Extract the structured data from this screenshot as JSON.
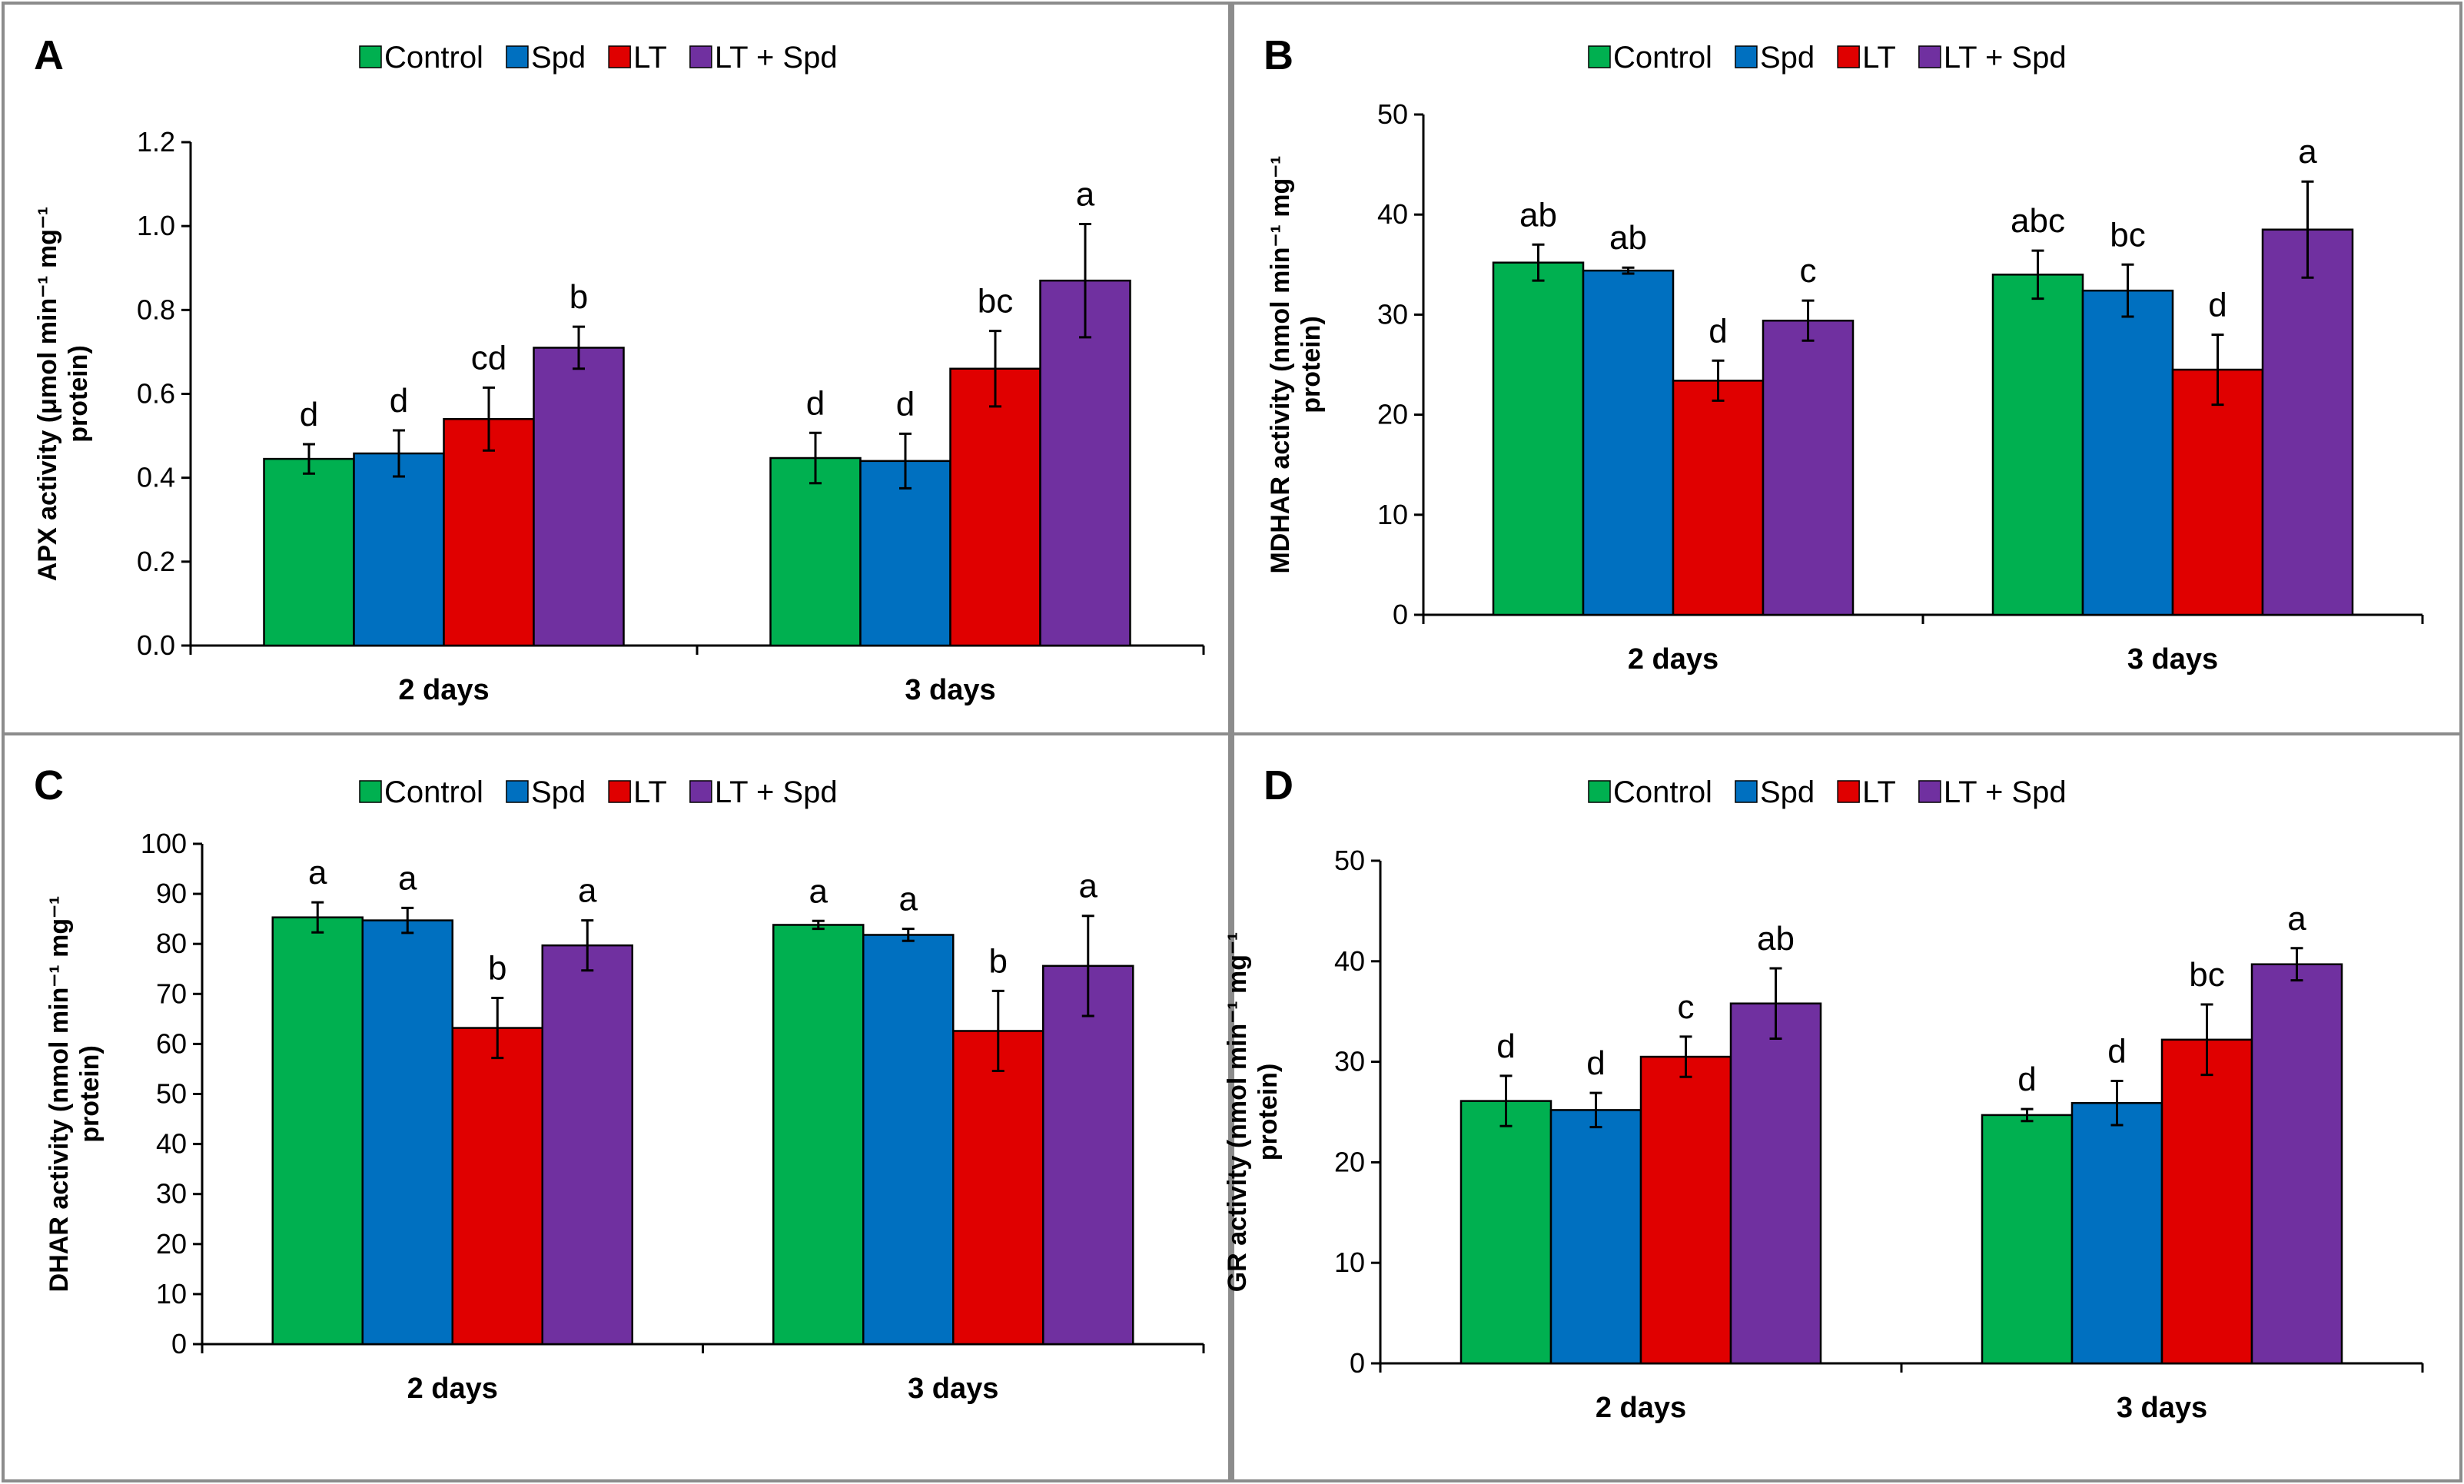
{
  "legend": {
    "series_names": [
      "Control",
      "Spd",
      "LT",
      "LT + Spd"
    ],
    "series_colors": [
      "#00b050",
      "#0070c0",
      "#e00000",
      "#7030a0"
    ]
  },
  "chart_data": [
    {
      "panel": "A",
      "type": "bar",
      "categories": [
        "2 days",
        "3 days"
      ],
      "ylabel_line1": "APX activity (μmol min⁻¹ mg⁻¹",
      "ylabel_line2": "protein)",
      "ylim": [
        0,
        1.2
      ],
      "yticks": [
        "0.0",
        "0.2",
        "0.4",
        "0.6",
        "0.8",
        "1.0",
        "1.2"
      ],
      "series": [
        {
          "name": "Control",
          "values": [
            0.445,
            0.447
          ],
          "errors": [
            0.035,
            0.06
          ],
          "letters": [
            "d",
            "d"
          ]
        },
        {
          "name": "Spd",
          "values": [
            0.458,
            0.44
          ],
          "errors": [
            0.055,
            0.065
          ],
          "letters": [
            "d",
            "d"
          ]
        },
        {
          "name": "LT",
          "values": [
            0.54,
            0.66
          ],
          "errors": [
            0.075,
            0.09
          ],
          "letters": [
            "cd",
            "bc"
          ]
        },
        {
          "name": "LT + Spd",
          "values": [
            0.71,
            0.87
          ],
          "errors": [
            0.05,
            0.135
          ],
          "letters": [
            "b",
            "a"
          ]
        }
      ]
    },
    {
      "panel": "B",
      "type": "bar",
      "categories": [
        "2 days",
        "3 days"
      ],
      "ylabel_line1": "MDHAR activity (nmol min⁻¹ mg⁻¹",
      "ylabel_line2": "protein)",
      "ylim": [
        0,
        50
      ],
      "yticks": [
        "0",
        "10",
        "20",
        "30",
        "40",
        "50"
      ],
      "series": [
        {
          "name": "Control",
          "values": [
            35.2,
            34.0
          ],
          "errors": [
            1.8,
            2.4
          ],
          "letters": [
            "ab",
            "abc"
          ]
        },
        {
          "name": "Spd",
          "values": [
            34.4,
            32.4
          ],
          "errors": [
            0.3,
            2.6
          ],
          "letters": [
            "ab",
            "bc"
          ]
        },
        {
          "name": "LT",
          "values": [
            23.4,
            24.5
          ],
          "errors": [
            2.0,
            3.5
          ],
          "letters": [
            "d",
            "d"
          ]
        },
        {
          "name": "LT + Spd",
          "values": [
            29.4,
            38.5
          ],
          "errors": [
            2.0,
            4.8
          ],
          "letters": [
            "c",
            "a"
          ]
        }
      ]
    },
    {
      "panel": "C",
      "type": "bar",
      "categories": [
        "2 days",
        "3 days"
      ],
      "ylabel_line1": "DHAR activity (nmol min⁻¹ mg⁻¹",
      "ylabel_line2": "protein)",
      "ylim": [
        0,
        100
      ],
      "yticks": [
        "0",
        "10",
        "20",
        "30",
        "40",
        "50",
        "60",
        "70",
        "80",
        "90",
        "100"
      ],
      "series": [
        {
          "name": "Control",
          "values": [
            85.3,
            83.8
          ],
          "errors": [
            3.0,
            0.8
          ],
          "letters": [
            "a",
            "a"
          ]
        },
        {
          "name": "Spd",
          "values": [
            84.7,
            81.8
          ],
          "errors": [
            2.5,
            1.2
          ],
          "letters": [
            "a",
            "a"
          ]
        },
        {
          "name": "LT",
          "values": [
            63.2,
            62.6
          ],
          "errors": [
            6.0,
            8.0
          ],
          "letters": [
            "b",
            "b"
          ]
        },
        {
          "name": "LT + Spd",
          "values": [
            79.7,
            75.6
          ],
          "errors": [
            5.0,
            10.0
          ],
          "letters": [
            "a",
            "a"
          ]
        }
      ]
    },
    {
      "panel": "D",
      "type": "bar",
      "categories": [
        "2 days",
        "3 days"
      ],
      "ylabel_line1": "GR activity (nmol min⁻¹ mg⁻¹",
      "ylabel_line2": "protein)",
      "ylim": [
        0,
        50
      ],
      "yticks": [
        "0",
        "10",
        "20",
        "30",
        "40",
        "50"
      ],
      "series": [
        {
          "name": "Control",
          "values": [
            26.1,
            24.7
          ],
          "errors": [
            2.5,
            0.6
          ],
          "letters": [
            "d",
            "d"
          ]
        },
        {
          "name": "Spd",
          "values": [
            25.2,
            25.9
          ],
          "errors": [
            1.7,
            2.2
          ],
          "letters": [
            "d",
            "d"
          ]
        },
        {
          "name": "LT",
          "values": [
            30.5,
            32.2
          ],
          "errors": [
            2.0,
            3.5
          ],
          "letters": [
            "c",
            "bc"
          ]
        },
        {
          "name": "LT + Spd",
          "values": [
            35.8,
            39.7
          ],
          "errors": [
            3.5,
            1.6
          ],
          "letters": [
            "ab",
            "a"
          ]
        }
      ]
    }
  ]
}
